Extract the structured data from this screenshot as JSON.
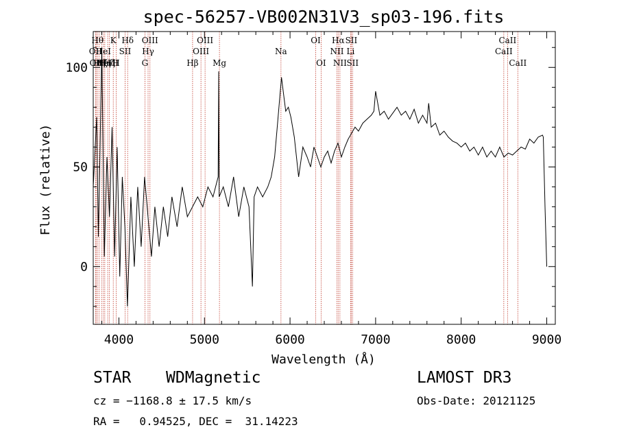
{
  "chart_data": {
    "type": "line",
    "title": "spec-56257-VB002N31V3_sp03-196.fits",
    "xlabel": "Wavelength (Å)",
    "ylabel": "Flux (relative)",
    "xlim": [
      3700,
      9100
    ],
    "ylim": [
      -29,
      118
    ],
    "xticks": [
      {
        "value": 4000,
        "label": "4000"
      },
      {
        "value": 5000,
        "label": "5000"
      },
      {
        "value": 6000,
        "label": "6000"
      },
      {
        "value": 7000,
        "label": "7000"
      },
      {
        "value": 8000,
        "label": "8000"
      },
      {
        "value": 9000,
        "label": "9000"
      }
    ],
    "yticks": [
      {
        "value": 0,
        "label": "0"
      },
      {
        "value": 50,
        "label": "50"
      },
      {
        "value": 100,
        "label": "100"
      }
    ],
    "series": [
      {
        "name": "spectrum",
        "color": "#000000",
        "x": [
          3700,
          3740,
          3760,
          3780,
          3800,
          3830,
          3860,
          3890,
          3920,
          3950,
          3980,
          4010,
          4040,
          4070,
          4100,
          4140,
          4180,
          4220,
          4260,
          4300,
          4340,
          4380,
          4420,
          4470,
          4520,
          4570,
          4620,
          4680,
          4740,
          4800,
          4860,
          4920,
          4980,
          5040,
          5100,
          5160,
          5166,
          5172,
          5220,
          5280,
          5340,
          5400,
          5460,
          5520,
          5560,
          5580,
          5620,
          5680,
          5740,
          5780,
          5820,
          5850,
          5880,
          5900,
          5920,
          5950,
          5980,
          6010,
          6050,
          6100,
          6150,
          6200,
          6240,
          6280,
          6320,
          6360,
          6400,
          6440,
          6480,
          6520,
          6560,
          6600,
          6640,
          6680,
          6720,
          6760,
          6800,
          6850,
          6900,
          6950,
          6980,
          7000,
          7050,
          7100,
          7150,
          7200,
          7250,
          7300,
          7350,
          7400,
          7450,
          7500,
          7550,
          7600,
          7620,
          7650,
          7700,
          7750,
          7800,
          7850,
          7900,
          7950,
          8000,
          8050,
          8100,
          8150,
          8200,
          8250,
          8300,
          8350,
          8400,
          8450,
          8500,
          8550,
          8600,
          8650,
          8700,
          8750,
          8800,
          8850,
          8900,
          8950,
          8960,
          8980,
          9000
        ],
        "values": [
          40,
          75,
          15,
          60,
          110,
          5,
          55,
          25,
          70,
          5,
          60,
          -5,
          45,
          20,
          -20,
          35,
          0,
          40,
          10,
          45,
          25,
          5,
          30,
          10,
          30,
          15,
          35,
          20,
          40,
          25,
          30,
          35,
          30,
          40,
          35,
          45,
          98,
          35,
          40,
          30,
          45,
          25,
          40,
          30,
          -10,
          35,
          40,
          35,
          40,
          45,
          55,
          70,
          85,
          95,
          88,
          78,
          80,
          75,
          65,
          45,
          60,
          55,
          50,
          60,
          55,
          50,
          55,
          58,
          52,
          58,
          62,
          55,
          60,
          64,
          67,
          70,
          68,
          72,
          74,
          76,
          78,
          88,
          76,
          78,
          74,
          77,
          80,
          76,
          78,
          74,
          79,
          72,
          76,
          72,
          82,
          70,
          72,
          66,
          68,
          65,
          63,
          62,
          60,
          62,
          58,
          60,
          56,
          60,
          55,
          58,
          55,
          60,
          55,
          57,
          56,
          58,
          60,
          59,
          64,
          62,
          65,
          66,
          65,
          30,
          0
        ]
      }
    ],
    "lines": [
      {
        "wave": 3727,
        "label": "OII",
        "row": 2
      },
      {
        "wave": 3734,
        "label": "OII",
        "row": 3
      },
      {
        "wave": 3750,
        "label": "Hθ",
        "row": 1
      },
      {
        "wave": 3770,
        "label": "Hη",
        "row": 3
      },
      {
        "wave": 3798,
        "label": "Hζ",
        "row": 3
      },
      {
        "wave": 3819,
        "label": "HeI",
        "row": 2
      },
      {
        "wave": 3835,
        "label": "Hη",
        "row": 3
      },
      {
        "wave": 3869,
        "label": "NeIII",
        "row": 3
      },
      {
        "wave": 3889,
        "label": "Hζ",
        "row": 3
      },
      {
        "wave": 3934,
        "label": "K",
        "row": 1
      },
      {
        "wave": 3968,
        "label": "H",
        "row": 3
      },
      {
        "wave": 4072,
        "label": "SII",
        "row": 2
      },
      {
        "wave": 4102,
        "label": "Hδ",
        "row": 1
      },
      {
        "wave": 4304,
        "label": "G",
        "row": 3
      },
      {
        "wave": 4341,
        "label": "Hγ",
        "row": 2
      },
      {
        "wave": 4363,
        "label": "OIII",
        "row": 1
      },
      {
        "wave": 4861,
        "label": "Hβ",
        "row": 3
      },
      {
        "wave": 4959,
        "label": "OIII",
        "row": 2
      },
      {
        "wave": 5007,
        "label": "OIII",
        "row": 1
      },
      {
        "wave": 5175,
        "label": "Mg",
        "row": 3
      },
      {
        "wave": 5894,
        "label": "Na",
        "row": 2
      },
      {
        "wave": 6300,
        "label": "OI",
        "row": 1
      },
      {
        "wave": 6363,
        "label": "OI",
        "row": 3
      },
      {
        "wave": 6548,
        "label": "NII",
        "row": 2
      },
      {
        "wave": 6563,
        "label": "Hα",
        "row": 1
      },
      {
        "wave": 6583,
        "label": "NII",
        "row": 3
      },
      {
        "wave": 6708,
        "label": "Li",
        "row": 2
      },
      {
        "wave": 6716,
        "label": "SII",
        "row": 1
      },
      {
        "wave": 6731,
        "label": "SII",
        "row": 3
      },
      {
        "wave": 8498,
        "label": "CaII",
        "row": 2
      },
      {
        "wave": 8542,
        "label": "CaII",
        "row": 1
      },
      {
        "wave": 8662,
        "label": "CaII",
        "row": 3
      }
    ],
    "line_color": "#c0392b"
  },
  "info": {
    "class": "STAR",
    "subclass": "WDMagnetic",
    "survey": "LAMOST DR3",
    "cz": "cz = −1168.8 ± 17.5 km/s",
    "obs_date": "Obs-Date: 20121125",
    "coords": "RA =   0.94525, DEC =  31.14223"
  }
}
